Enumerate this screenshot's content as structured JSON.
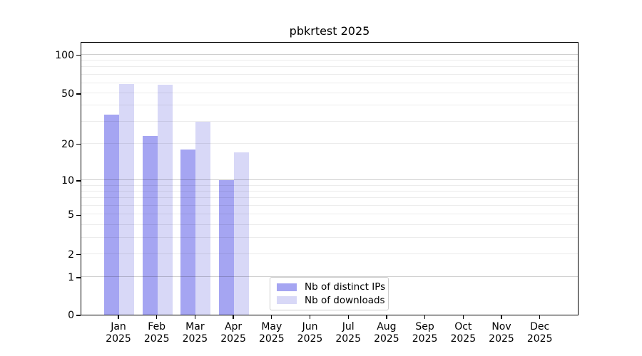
{
  "chart_data": {
    "type": "bar",
    "title": "pbkrtest 2025",
    "categories": [
      "Jan",
      "Feb",
      "Mar",
      "Apr",
      "May",
      "Jun",
      "Jul",
      "Aug",
      "Sep",
      "Oct",
      "Nov",
      "Dec"
    ],
    "year_label": "2025",
    "series": [
      {
        "name": "Nb of distinct IPs",
        "color": "#a5a5f2",
        "values": [
          34,
          23,
          18,
          10,
          null,
          null,
          null,
          null,
          null,
          null,
          null,
          null
        ]
      },
      {
        "name": "Nb of downloads",
        "color": "#d8d8f7",
        "values": [
          59,
          58,
          30,
          17,
          null,
          null,
          null,
          null,
          null,
          null,
          null,
          null
        ]
      }
    ],
    "y_axis": {
      "scale": "log1p",
      "tick_labels": [
        100,
        50,
        20,
        10,
        5,
        2,
        1,
        0
      ],
      "major_gridlines": [
        1,
        10,
        100
      ],
      "minor_gridlines": [
        2,
        3,
        4,
        5,
        6,
        7,
        8,
        9,
        20,
        30,
        40,
        50,
        60,
        70,
        80,
        90
      ],
      "ylim": [
        0,
        123
      ]
    },
    "x_axis": {
      "tick_count": 12
    },
    "legend": {
      "position": "lower center"
    },
    "grid": true
  },
  "colors": {
    "distinct_ips_bar": "#a5a5f2",
    "downloads_bar": "#d8d8f7",
    "major_grid": "#cfcfcf",
    "minor_grid": "#ececec",
    "axis_line": "#000000",
    "legend_border": "#cccccc",
    "background": "#ffffff"
  }
}
